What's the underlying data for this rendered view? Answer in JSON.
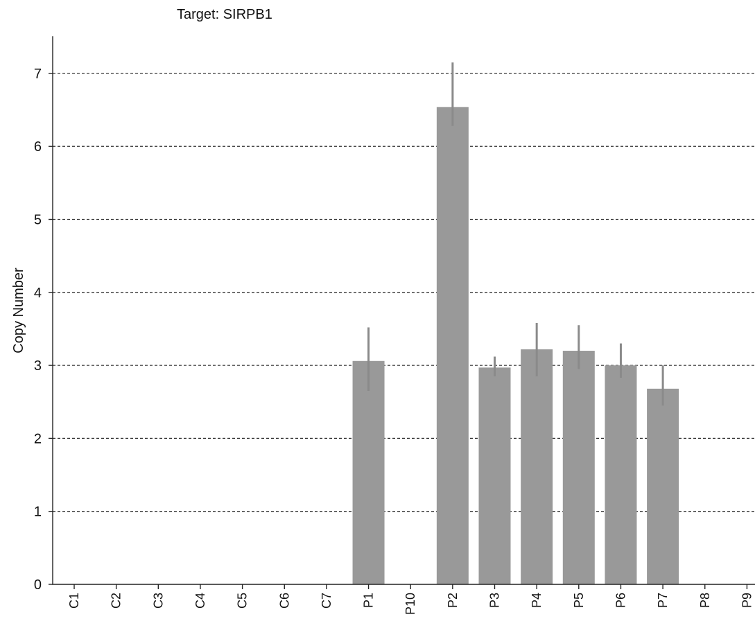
{
  "chart_data": {
    "type": "bar",
    "title": "Target: SIRPB1",
    "xlabel": "",
    "ylabel": "Copy Number",
    "ylim": [
      0,
      7.5
    ],
    "yticks": [
      0,
      1,
      2,
      3,
      4,
      5,
      6,
      7
    ],
    "grid": true,
    "categories": [
      "C1",
      "C2",
      "C3",
      "C4",
      "C5",
      "C6",
      "C7",
      "P1",
      "P10",
      "P2",
      "P3",
      "P4",
      "P5",
      "P6",
      "P7",
      "P8",
      "P9"
    ],
    "values": [
      0,
      0,
      0,
      0,
      0,
      0,
      0,
      3.06,
      0,
      6.54,
      2.97,
      3.22,
      3.2,
      3.0,
      2.68,
      0,
      0
    ],
    "error_low": [
      null,
      null,
      null,
      null,
      null,
      null,
      null,
      2.65,
      null,
      6.28,
      2.85,
      2.85,
      2.95,
      2.83,
      2.45,
      null,
      null
    ],
    "error_high": [
      null,
      null,
      null,
      null,
      null,
      null,
      null,
      3.52,
      null,
      7.15,
      3.12,
      3.58,
      3.55,
      3.3,
      3.0,
      null,
      null
    ],
    "colors": {
      "bar": "#999999",
      "error": "#8a8a8a"
    }
  }
}
